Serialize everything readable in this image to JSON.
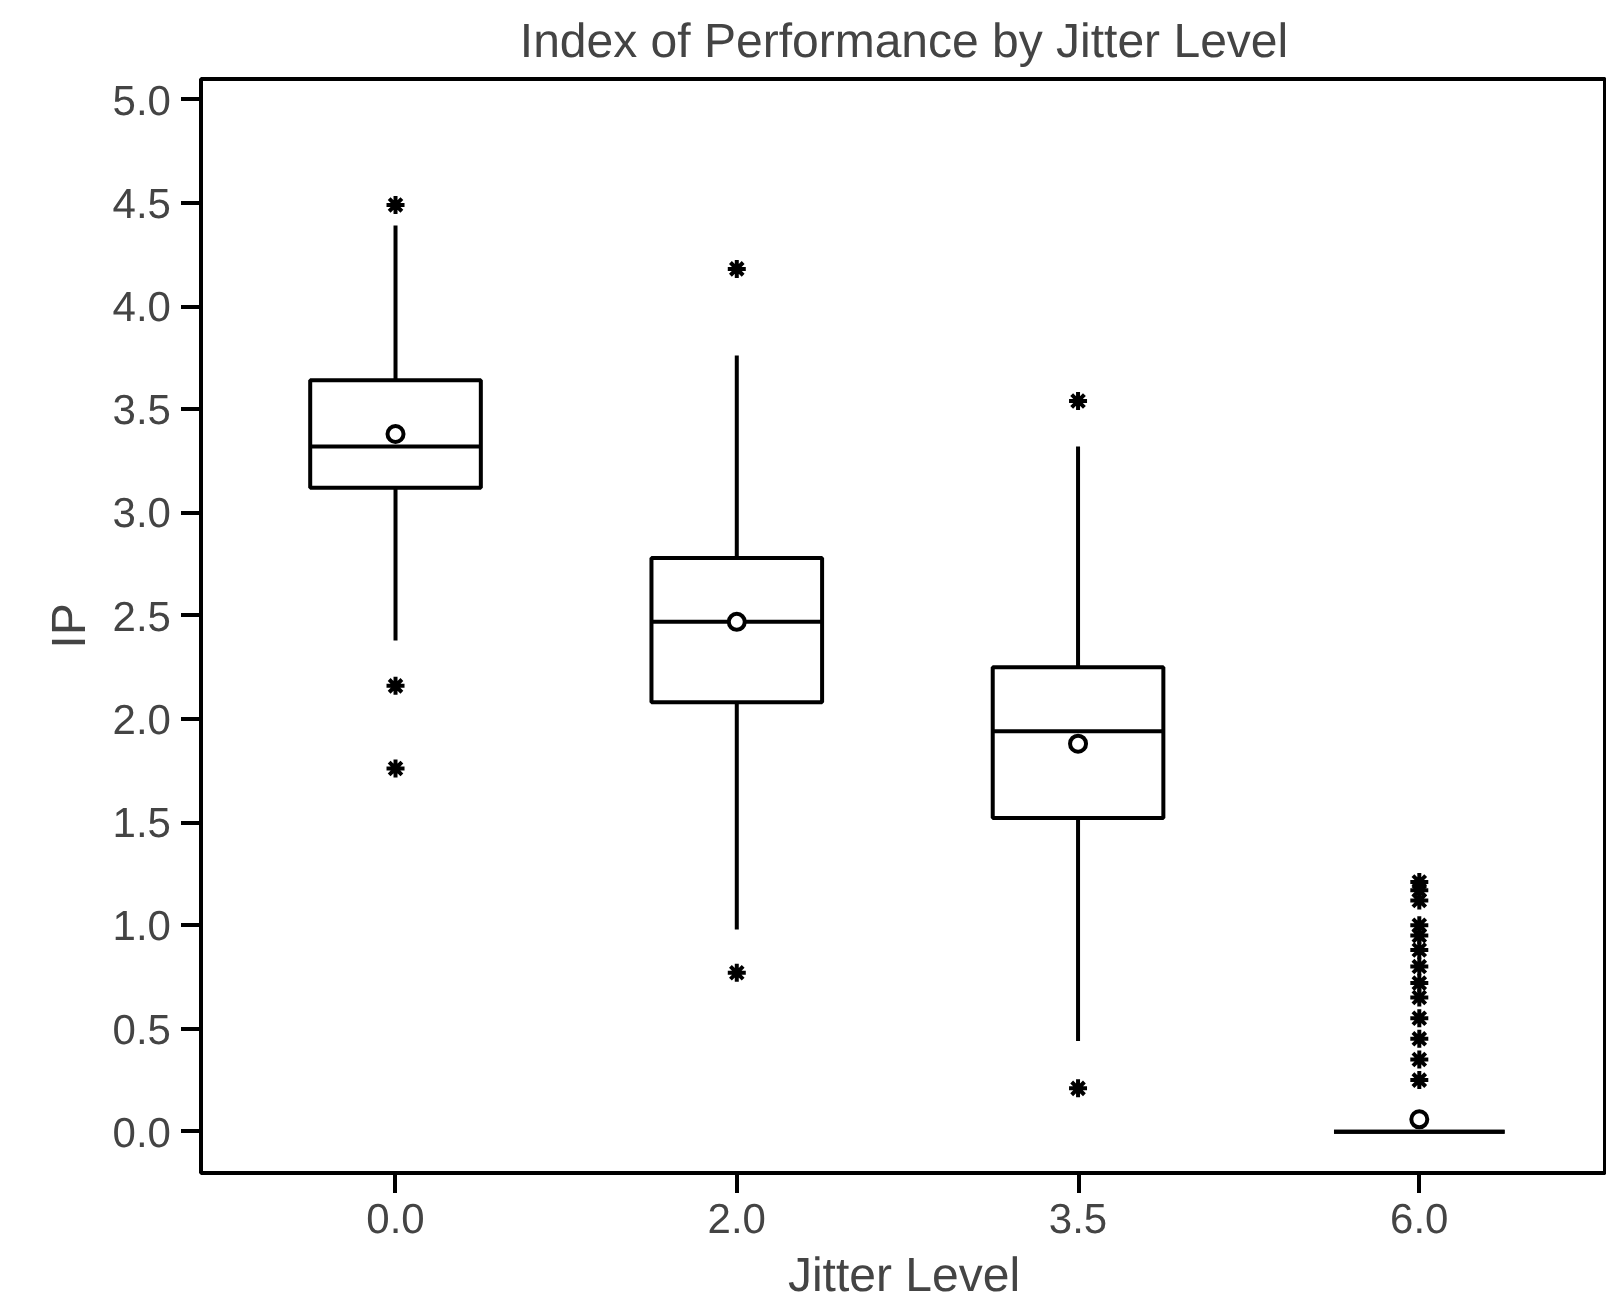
{
  "chart_data": {
    "type": "box",
    "title": "Index of Performance by Jitter Level",
    "xlabel": "Jitter Level",
    "ylabel": "IP",
    "categories": [
      "0.0",
      "2.0",
      "3.5",
      "6.0"
    ],
    "boxes": [
      {
        "low": 2.38,
        "q1": 3.12,
        "median": 3.32,
        "q3": 3.64,
        "high": 4.39,
        "mean": 3.38,
        "outliers": [
          4.49,
          2.16,
          1.76
        ]
      },
      {
        "low": 0.98,
        "q1": 2.08,
        "median": 2.47,
        "q3": 2.78,
        "high": 3.76,
        "mean": 2.47,
        "outliers": [
          4.18,
          0.77
        ]
      },
      {
        "low": 0.44,
        "q1": 1.52,
        "median": 1.94,
        "q3": 2.25,
        "high": 3.32,
        "mean": 1.88,
        "outliers": [
          3.54,
          0.21
        ]
      },
      {
        "low": 0.0,
        "q1": 0.0,
        "median": 0.0,
        "q3": 0.0,
        "high": 0.0,
        "mean": 0.06,
        "outliers": [
          1.21,
          1.17,
          1.12,
          1.0,
          0.95,
          0.88,
          0.8,
          0.72,
          0.65,
          0.55,
          0.45,
          0.35,
          0.25
        ]
      }
    ],
    "ylim": [
      -0.2,
      5.1
    ],
    "yticks": [
      {
        "value": 0,
        "label": "0.0"
      },
      {
        "value": 0.5,
        "label": "0.5"
      },
      {
        "value": 1,
        "label": "1.0"
      },
      {
        "value": 1.5,
        "label": "1.5"
      },
      {
        "value": 2,
        "label": "2.0"
      },
      {
        "value": 2.5,
        "label": "2.5"
      },
      {
        "value": 3,
        "label": "3.0"
      },
      {
        "value": 3.5,
        "label": "3.5"
      },
      {
        "value": 4,
        "label": "4.0"
      },
      {
        "value": 4.5,
        "label": "4.5"
      },
      {
        "value": 5,
        "label": "5.0"
      }
    ],
    "grid": false,
    "marker": "star"
  }
}
